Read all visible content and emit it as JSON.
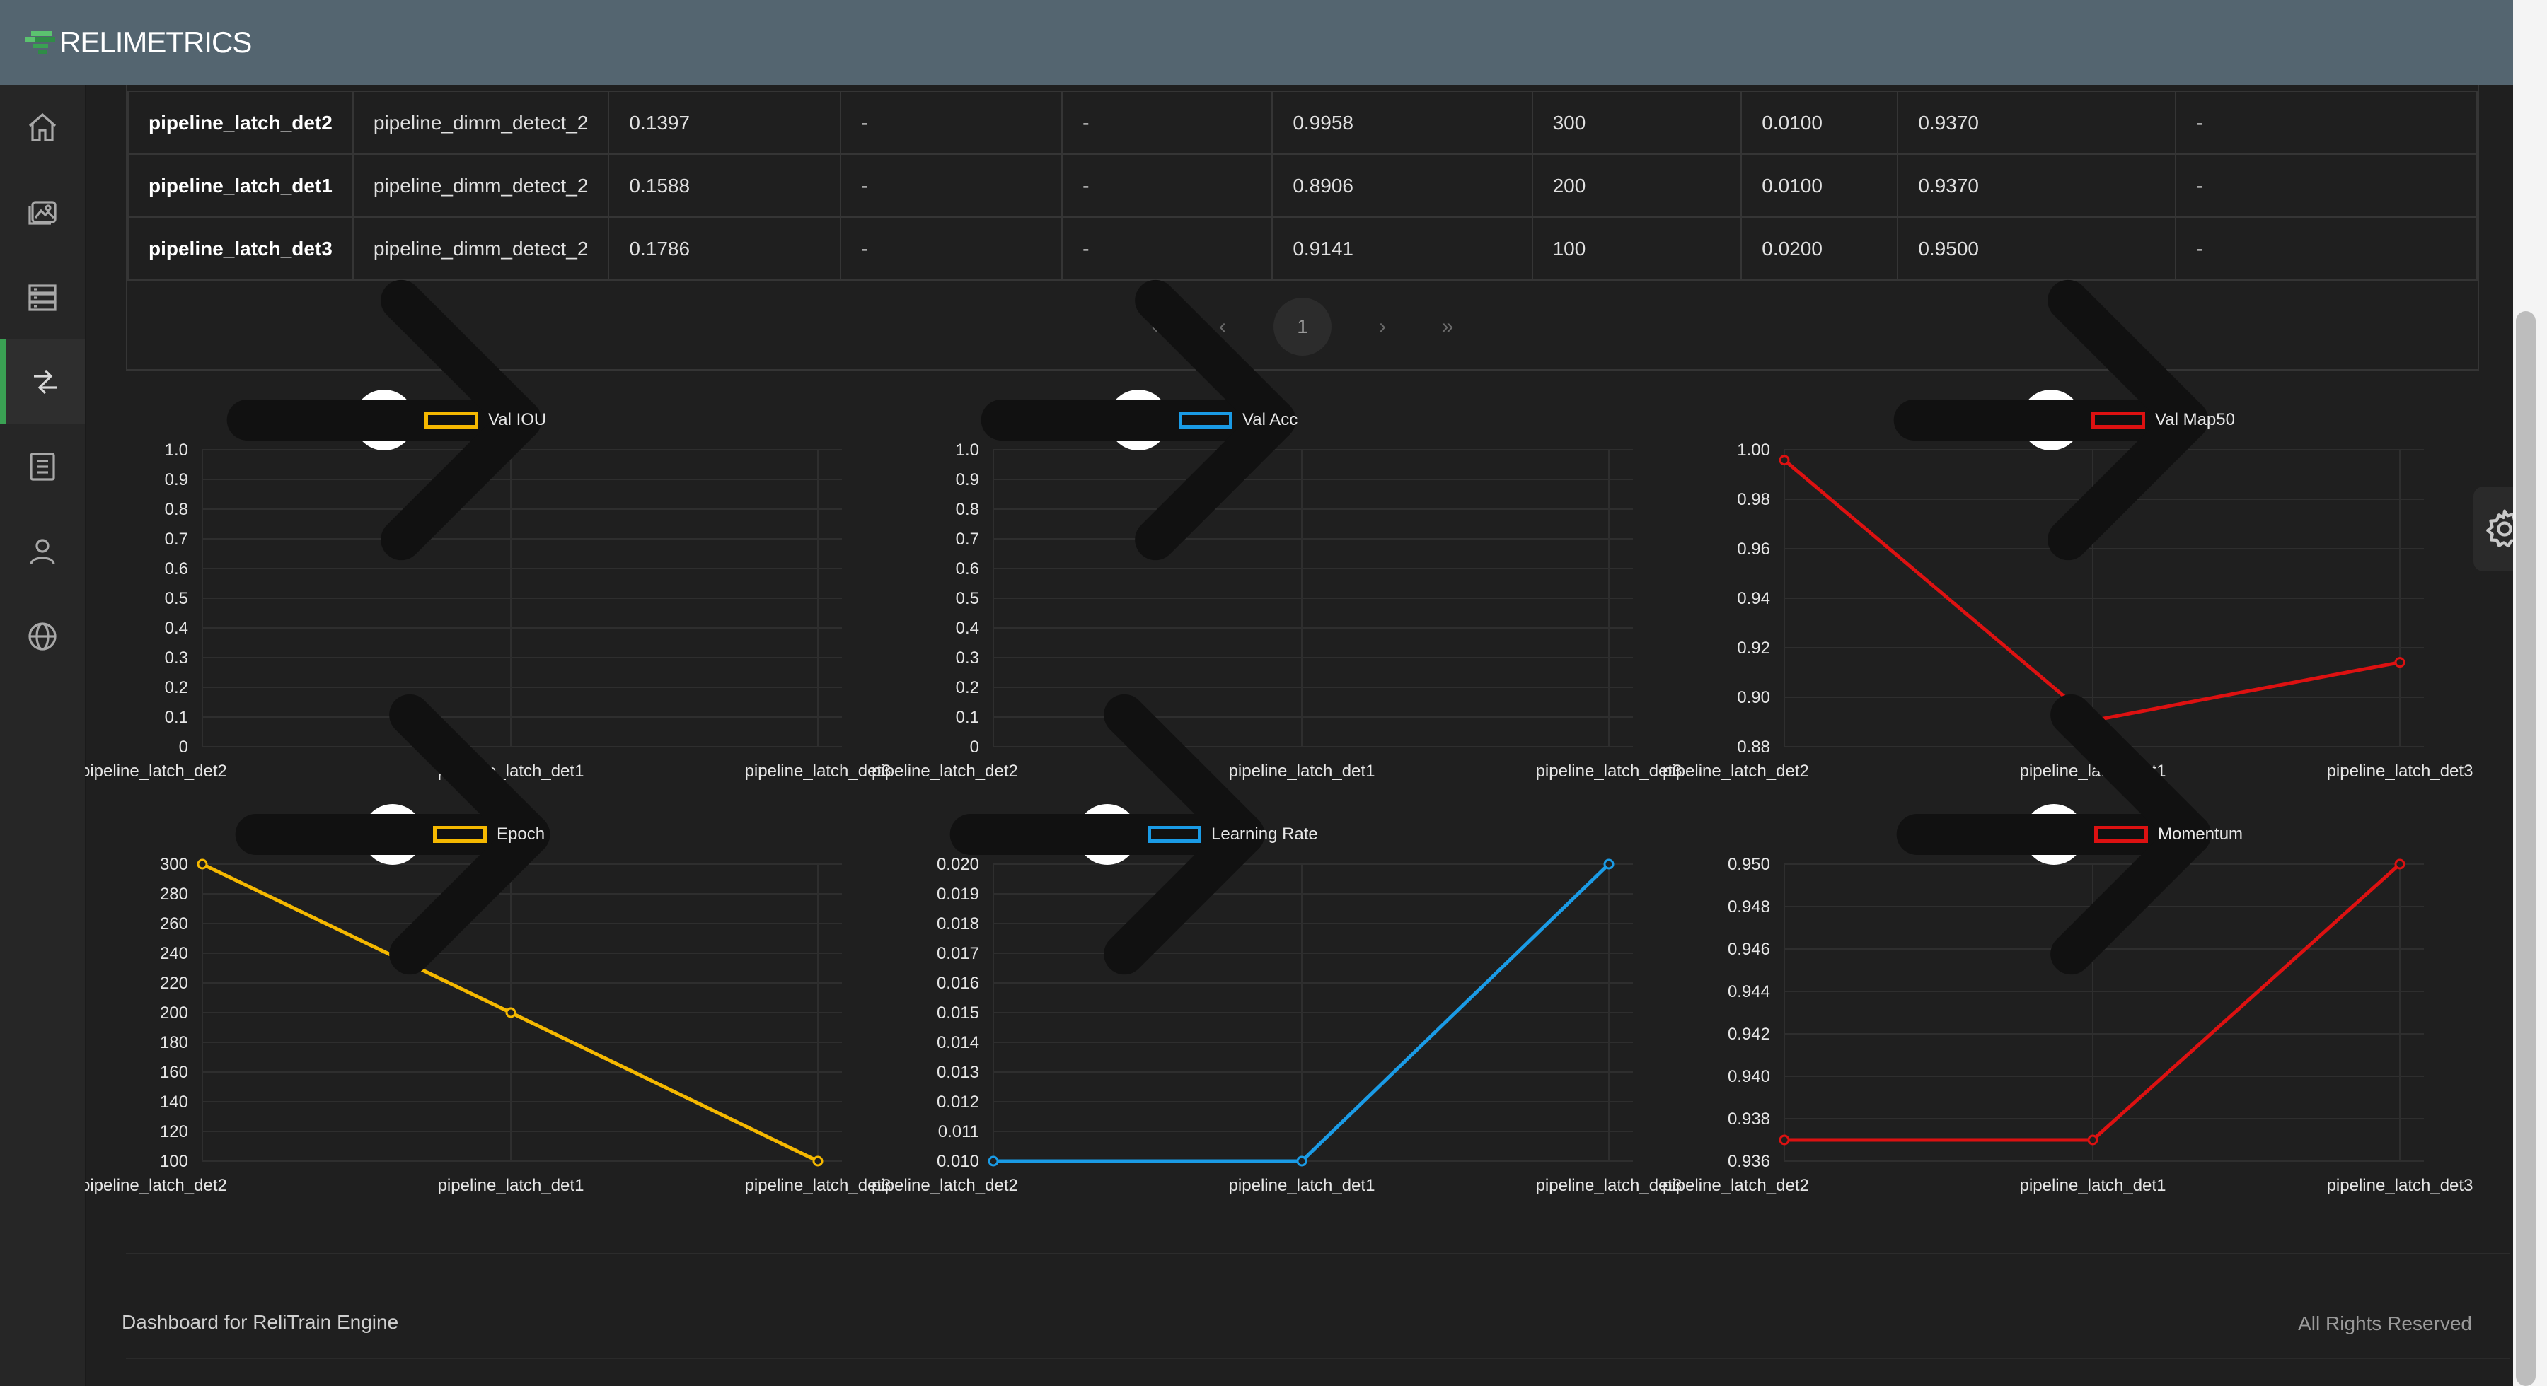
{
  "app": {
    "logo_text": "RELIMETRICS",
    "accent": "#3aa153"
  },
  "sidebar": {
    "items": [
      {
        "icon": "home-icon"
      },
      {
        "icon": "images-icon"
      },
      {
        "icon": "datasets-icon"
      },
      {
        "icon": "compare-icon",
        "active": true
      },
      {
        "icon": "document-icon"
      },
      {
        "icon": "user-icon"
      },
      {
        "icon": "globe-icon"
      }
    ]
  },
  "table": {
    "rows": [
      [
        "pipeline_latch_det2",
        "pipeline_dimm_detect_2",
        "0.1397",
        "-",
        "-",
        "0.9958",
        "300",
        "0.0100",
        "0.9370",
        "-"
      ],
      [
        "pipeline_latch_det1",
        "pipeline_dimm_detect_2",
        "0.1588",
        "-",
        "-",
        "0.8906",
        "200",
        "0.0100",
        "0.9370",
        "-"
      ],
      [
        "pipeline_latch_det3",
        "pipeline_dimm_detect_2",
        "0.1786",
        "-",
        "-",
        "0.9141",
        "100",
        "0.0200",
        "0.9500",
        "-"
      ]
    ]
  },
  "pager": {
    "first": "«",
    "prev": "‹",
    "current": "1",
    "next": "›",
    "last": "»"
  },
  "chart_data": [
    {
      "type": "line",
      "legend": "Val IOU",
      "color": "#f5b800",
      "categories": [
        "pipeline_latch_det2",
        "pipeline_latch_det1",
        "pipeline_latch_det3"
      ],
      "values": [
        null,
        null,
        null
      ],
      "ylim": [
        0,
        1.0
      ],
      "yticks": [
        "1.0",
        "0.9",
        "0.8",
        "0.7",
        "0.6",
        "0.5",
        "0.4",
        "0.3",
        "0.2",
        "0.1",
        "0"
      ]
    },
    {
      "type": "line",
      "legend": "Val Acc",
      "color": "#1a9be6",
      "categories": [
        "pipeline_latch_det2",
        "pipeline_latch_det1",
        "pipeline_latch_det3"
      ],
      "values": [
        null,
        null,
        null
      ],
      "ylim": [
        0,
        1.0
      ],
      "yticks": [
        "1.0",
        "0.9",
        "0.8",
        "0.7",
        "0.6",
        "0.5",
        "0.4",
        "0.3",
        "0.2",
        "0.1",
        "0"
      ]
    },
    {
      "type": "line",
      "legend": "Val Map50",
      "color": "#dd1111",
      "categories": [
        "pipeline_latch_det2",
        "pipeline_latch_det1",
        "pipeline_latch_det3"
      ],
      "values": [
        0.9958,
        0.8906,
        0.9141
      ],
      "ylim": [
        0.88,
        1.0
      ],
      "yticks": [
        "1.00",
        "0.98",
        "0.96",
        "0.94",
        "0.92",
        "0.90",
        "0.88"
      ]
    },
    {
      "type": "line",
      "legend": "Epoch",
      "color": "#f5b800",
      "categories": [
        "pipeline_latch_det2",
        "pipeline_latch_det1",
        "pipeline_latch_det3"
      ],
      "values": [
        300,
        200,
        100
      ],
      "ylim": [
        100,
        300
      ],
      "yticks": [
        "300",
        "280",
        "260",
        "240",
        "220",
        "200",
        "180",
        "160",
        "140",
        "120",
        "100"
      ]
    },
    {
      "type": "line",
      "legend": "Learning Rate",
      "color": "#1a9be6",
      "categories": [
        "pipeline_latch_det2",
        "pipeline_latch_det1",
        "pipeline_latch_det3"
      ],
      "values": [
        0.01,
        0.01,
        0.02
      ],
      "ylim": [
        0.01,
        0.02
      ],
      "yticks": [
        "0.020",
        "0.019",
        "0.018",
        "0.017",
        "0.016",
        "0.015",
        "0.014",
        "0.013",
        "0.012",
        "0.011",
        "0.010"
      ]
    },
    {
      "type": "line",
      "legend": "Momentum",
      "color": "#dd1111",
      "categories": [
        "pipeline_latch_det2",
        "pipeline_latch_det1",
        "pipeline_latch_det3"
      ],
      "values": [
        0.937,
        0.937,
        0.95
      ],
      "ylim": [
        0.936,
        0.95
      ],
      "yticks": [
        "0.950",
        "0.948",
        "0.946",
        "0.944",
        "0.942",
        "0.940",
        "0.938",
        "0.936"
      ]
    }
  ],
  "footer": {
    "left": "Dashboard for ReliTrain Engine",
    "right": "All Rights Reserved"
  }
}
